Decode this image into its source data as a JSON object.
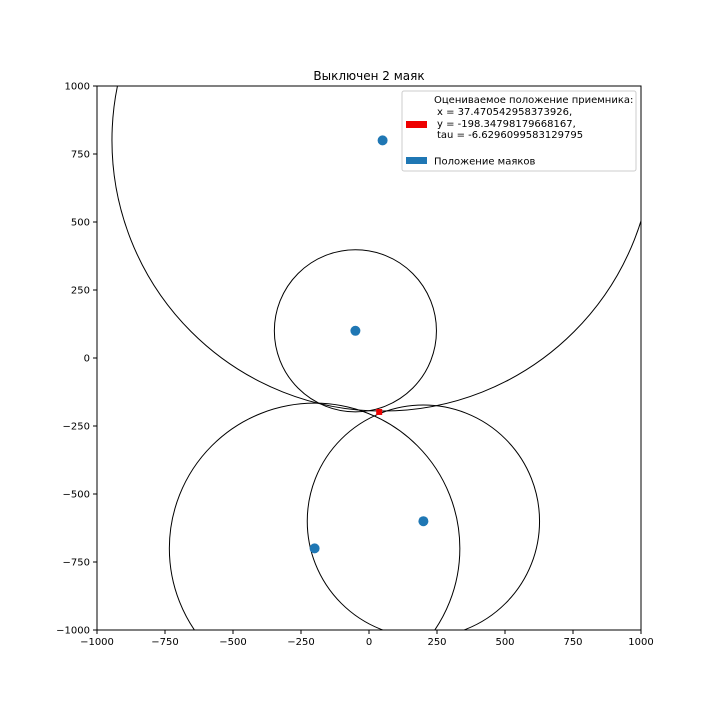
{
  "chart_data": {
    "type": "scatter",
    "title": "Выключен 2 маяк",
    "xlabel": "",
    "ylabel": "",
    "xlim": [
      -1000,
      1000
    ],
    "ylim": [
      -1000,
      1000
    ],
    "xticks": [
      -1000,
      -750,
      -500,
      -250,
      0,
      250,
      500,
      750,
      1000
    ],
    "yticks": [
      -1000,
      -750,
      -500,
      -250,
      0,
      250,
      500,
      750,
      1000
    ],
    "xtick_labels": [
      "−1000",
      "−750",
      "−500",
      "−250",
      "0",
      "250",
      "500",
      "750",
      "1000"
    ],
    "ytick_labels": [
      "−1000",
      "−750",
      "−500",
      "−250",
      "0",
      "250",
      "500",
      "750",
      "1000"
    ],
    "grid": false,
    "legend_position": "top-right",
    "series": [
      {
        "name": "Положение маяков",
        "color": "#1f77b4",
        "points": [
          {
            "x": 50,
            "y": 800
          },
          {
            "x": -50,
            "y": 100
          },
          {
            "x": 200,
            "y": -600
          },
          {
            "x": -200,
            "y": -700
          }
        ]
      },
      {
        "name": "Оцениваемое положение приемника:",
        "legend_lines": [
          "Оцениваемое положение приемника:",
          " x = 37.470542958373926,",
          " y = -198.34798179668167,",
          " tau = -6.6296099583129795"
        ],
        "color": "#ee0000",
        "points": [
          {
            "x": 37.470542958373926,
            "y": -198.34798179668167
          }
        ]
      }
    ],
    "circles": [
      {
        "cx": 50,
        "cy": 800,
        "r": 995
      },
      {
        "cx": -50,
        "cy": 100,
        "r": 298
      },
      {
        "cx": 200,
        "cy": -600,
        "r": 427
      },
      {
        "cx": -200,
        "cy": -700,
        "r": 534
      }
    ],
    "colors": {
      "circle_stroke": "#000000",
      "axes": "#000000",
      "background": "#ffffff"
    }
  }
}
